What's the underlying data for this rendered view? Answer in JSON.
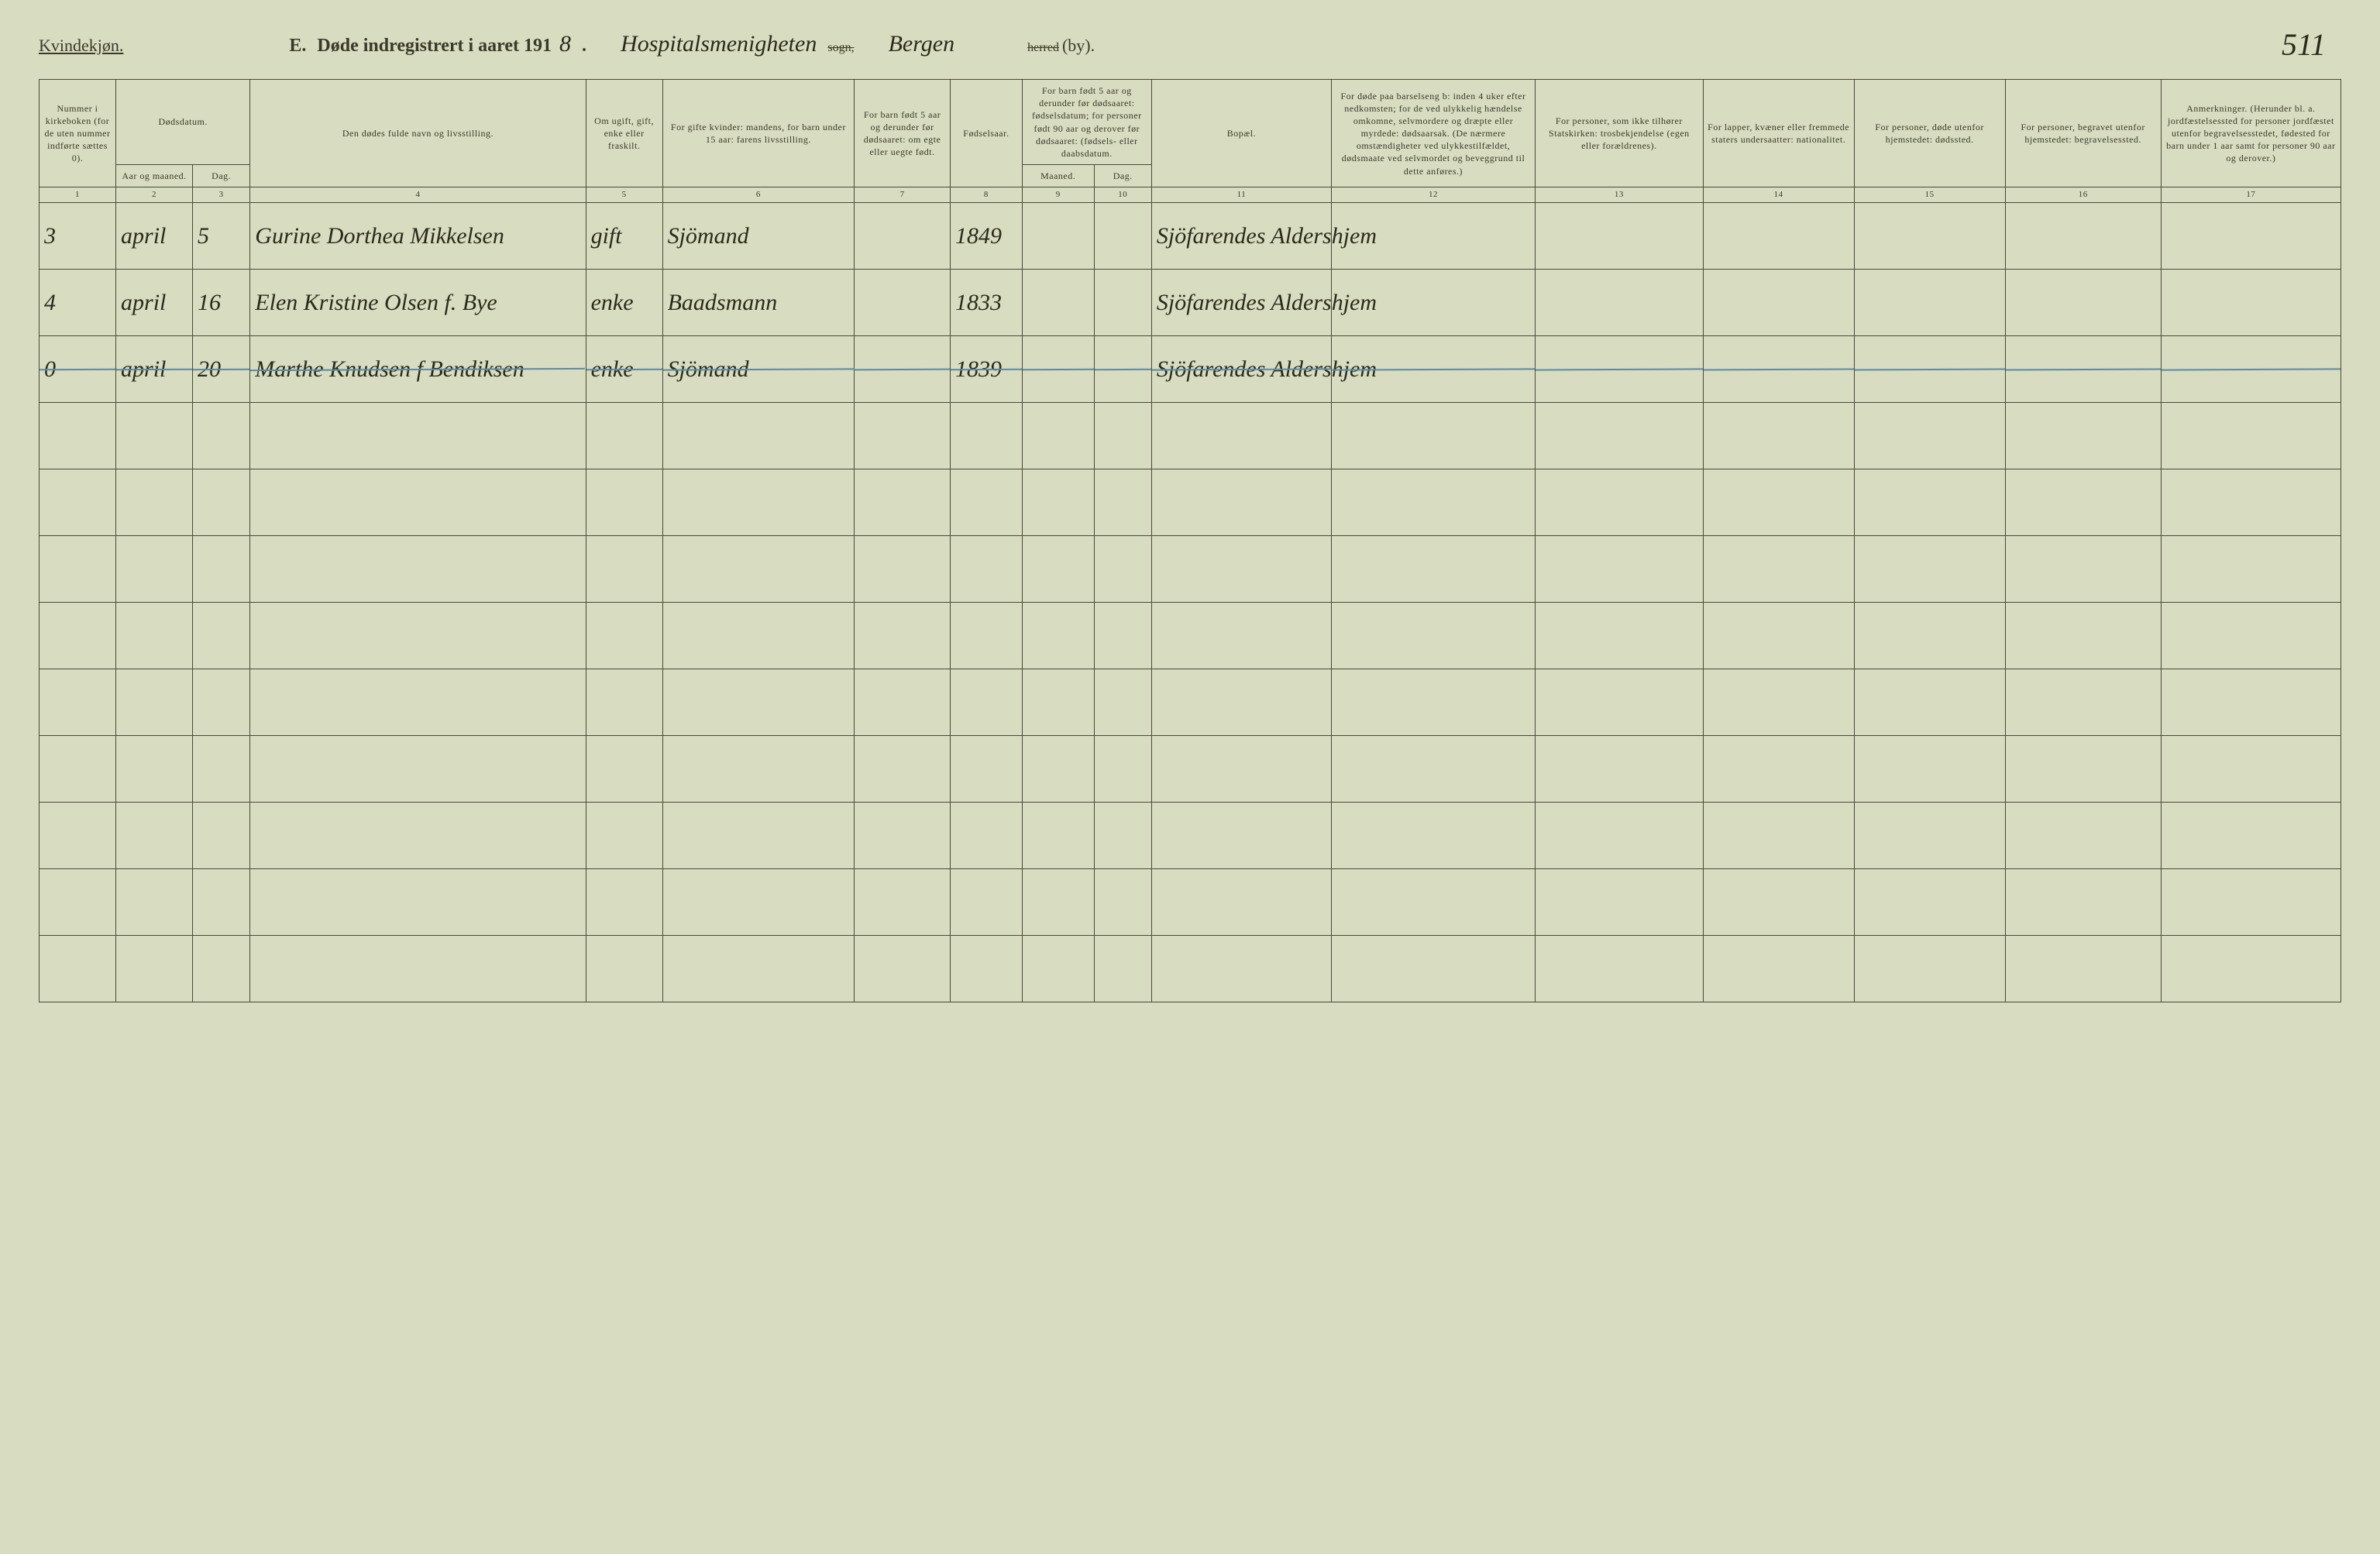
{
  "page": {
    "corner_label": "Kvindekjøn.",
    "title_prefix": "E.",
    "title_main": "Døde indregistrert i aaret 191",
    "year_suffix": "8",
    "title_period": ".",
    "sogn_hand": "Hospitalsmenigheten",
    "sogn_label": "sogn,",
    "herred_hand": "Bergen",
    "herred_label": "herred",
    "by_label": "(by).",
    "page_number": "511"
  },
  "colors": {
    "paper_bg": "#d8dcc0",
    "rule": "#4a4a38",
    "ink": "#2a2a1a",
    "strike": "#5a8aa8"
  },
  "headers": {
    "c1": "Nummer i kirkeboken (for de uten nummer indførte sættes 0).",
    "c2": "Dødsdatum.",
    "c2a": "Aar og maaned.",
    "c2b": "Dag.",
    "c4": "Den dødes fulde navn og livsstilling.",
    "c5": "Om ugift, gift, enke eller fraskilt.",
    "c6": "For gifte kvinder: mandens, for barn under 15 aar: farens livsstilling.",
    "c7": "For barn født 5 aar og derunder før dødsaaret: om egte eller uegte født.",
    "c8": "Fødselsaar.",
    "c9": "For barn født 5 aar og derunder før dødsaaret: fødselsdatum; for personer født 90 aar og derover før dødsaaret: (fødsels- eller daabsdatum.",
    "c9a": "Maaned.",
    "c9b": "Dag.",
    "c11": "Bopæl.",
    "c12": "For døde paa barselseng b: inden 4 uker efter nedkomsten; for de ved ulykkelig hændelse omkomne, selvmordere og dræpte eller myrdede: dødsaarsak. (De nærmere omstændigheter ved ulykkestilfældet, dødsmaate ved selvmordet og beveggrund til dette anføres.)",
    "c13": "For personer, som ikke tilhører Statskirken: trosbekjendelse (egen eller forældrenes).",
    "c14": "For lapper, kvæner eller fremmede staters undersaatter: nationalitet.",
    "c15": "For personer, døde utenfor hjemstedet: dødssted.",
    "c16": "For personer, begravet utenfor hjemstedet: begravelsessted.",
    "c17": "Anmerkninger. (Herunder bl. a. jordfæstelsessted for personer jordfæstet utenfor begravelsesstedet, fødested for barn under 1 aar samt for personer 90 aar og derover.)"
  },
  "colnums": [
    "1",
    "2",
    "3",
    "4",
    "5",
    "6",
    "7",
    "8",
    "9",
    "10",
    "11",
    "12",
    "13",
    "14",
    "15",
    "16",
    "17"
  ],
  "rows": [
    {
      "num": "3",
      "month": "april",
      "day": "5",
      "name": "Gurine Dorthea Mikkelsen",
      "status": "gift",
      "occupation": "Sjömand",
      "col7": "",
      "year": "1849",
      "c9a": "",
      "c9b": "",
      "residence": "Sjöfarendes Aldershjem",
      "c12": "",
      "c13": "",
      "c14": "",
      "c15": "",
      "c16": "",
      "c17": "",
      "struck": false
    },
    {
      "num": "4",
      "month": "april",
      "day": "16",
      "name": "Elen Kristine Olsen f. Bye",
      "status": "enke",
      "occupation": "Baadsmann",
      "col7": "",
      "year": "1833",
      "c9a": "",
      "c9b": "",
      "residence": "Sjöfarendes Aldershjem",
      "c12": "",
      "c13": "",
      "c14": "",
      "c15": "",
      "c16": "",
      "c17": "",
      "struck": false
    },
    {
      "num": "0",
      "month": "april",
      "day": "20",
      "name": "Marthe Knudsen f Bendiksen",
      "status": "enke",
      "occupation": "Sjömand",
      "col7": "",
      "year": "1839",
      "c9a": "",
      "c9b": "",
      "residence": "Sjöfarendes Aldershjem",
      "c12": "",
      "c13": "",
      "c14": "",
      "c15": "",
      "c16": "",
      "c17": "",
      "struck": true
    }
  ],
  "blank_rows": 9
}
